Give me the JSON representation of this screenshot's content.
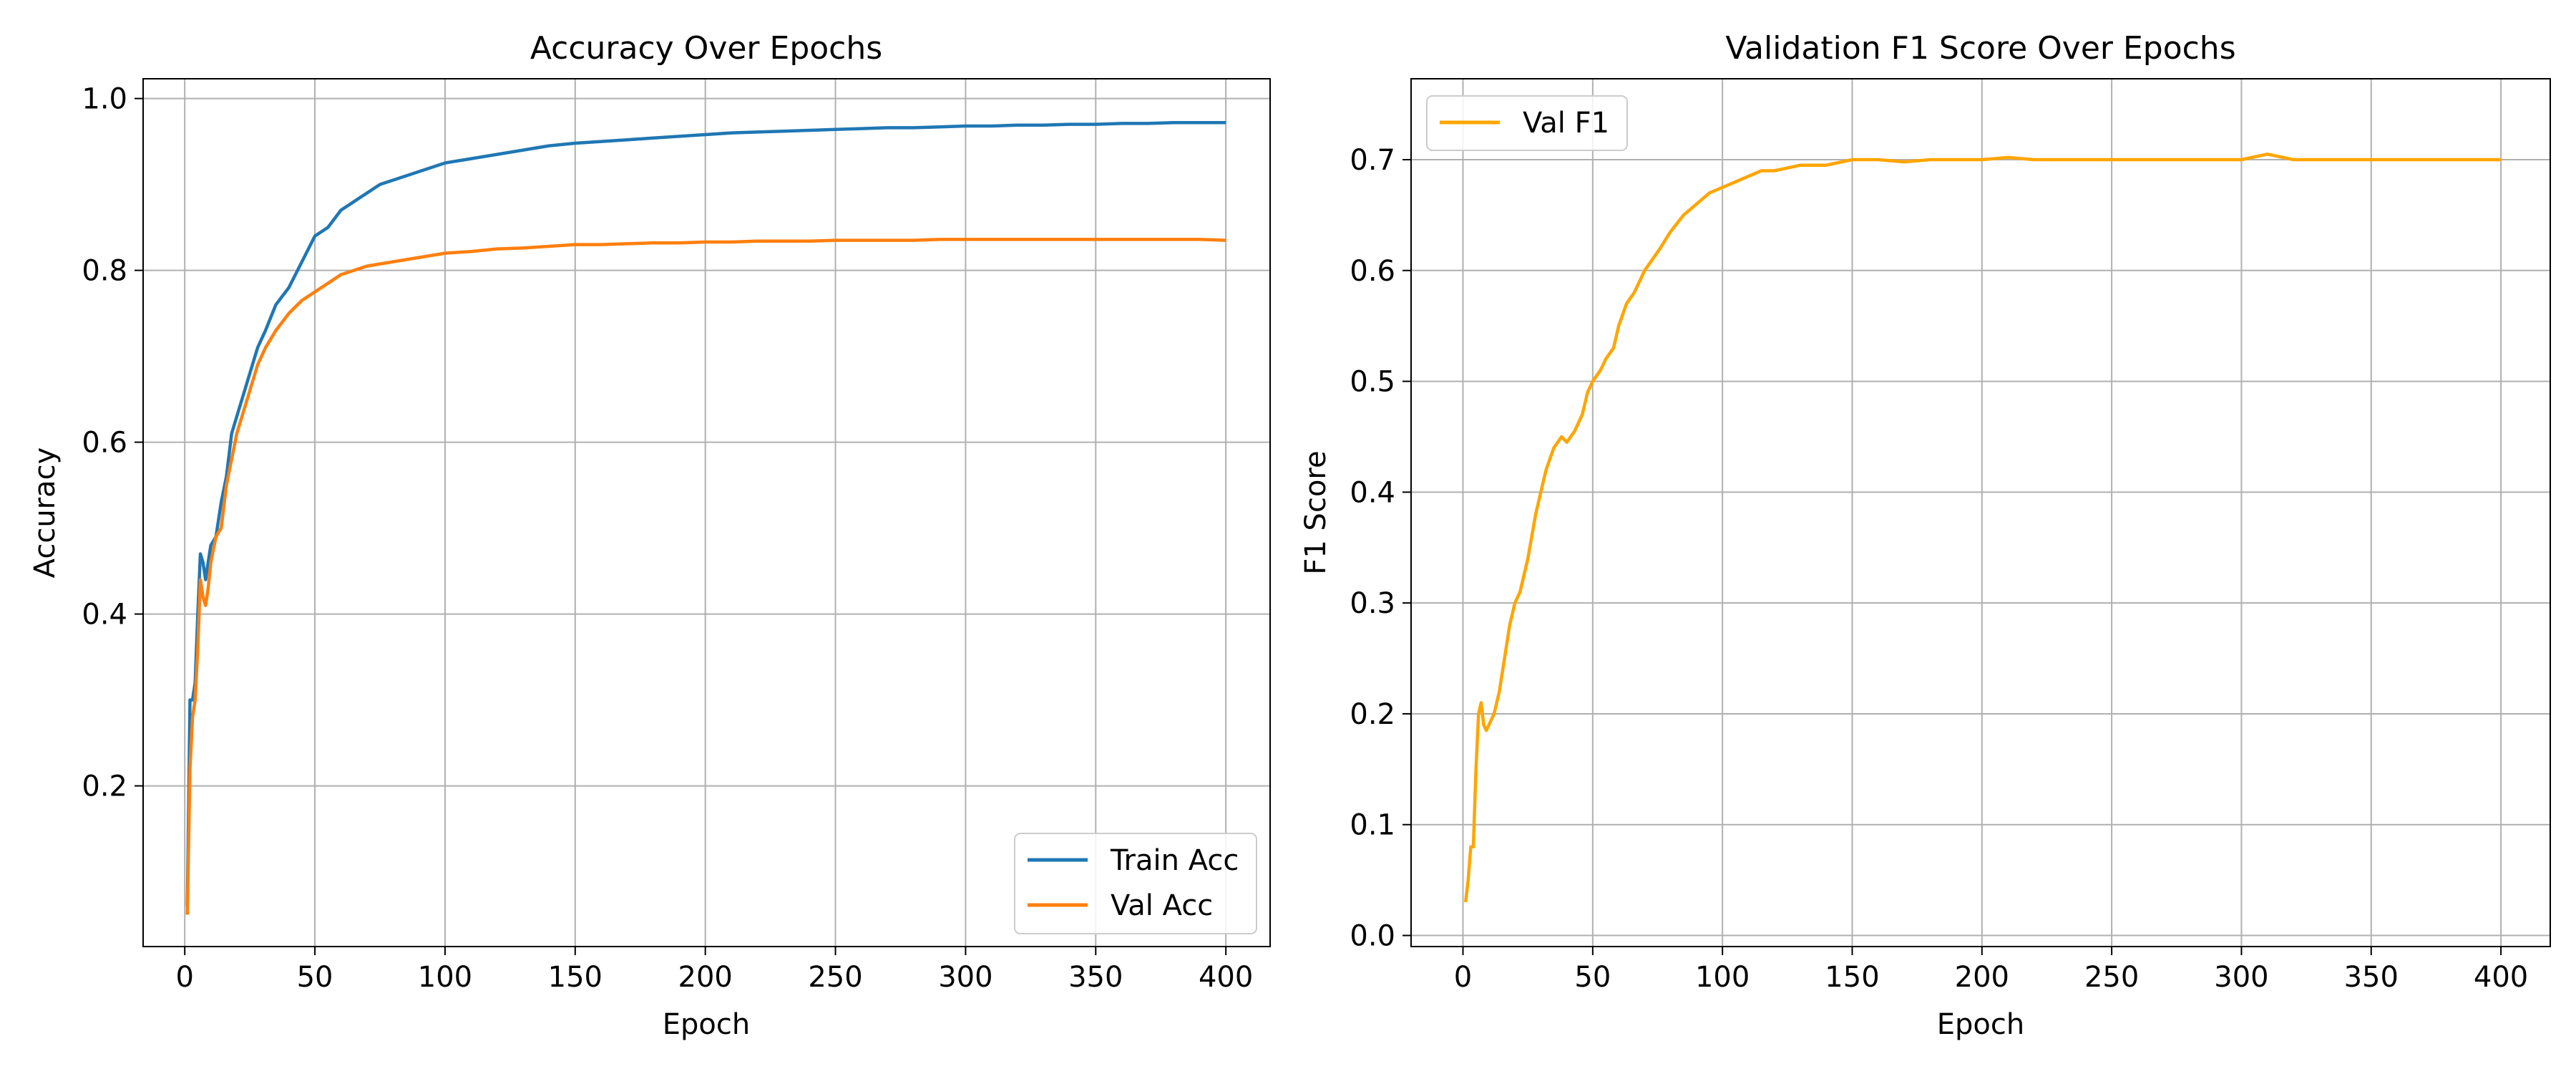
{
  "chart_data": [
    {
      "type": "line",
      "title": "Accuracy Over Epochs",
      "xlabel": "Epoch",
      "ylabel": "Accuracy",
      "xlim": [
        -16,
        417
      ],
      "ylim": [
        0.013,
        1.023
      ],
      "xticks": [
        0,
        50,
        100,
        150,
        200,
        250,
        300,
        350,
        400
      ],
      "yticks": [
        0.2,
        0.4,
        0.6,
        0.8,
        1.0
      ],
      "ytick_labels": [
        "0.2",
        "0.4",
        "0.6",
        "0.8",
        "1.0"
      ],
      "grid": true,
      "legend_position": "lower-right",
      "series": [
        {
          "name": "Train Acc",
          "color": "#1f77b4",
          "points": [
            [
              1,
              0.06
            ],
            [
              2,
              0.3
            ],
            [
              3,
              0.3
            ],
            [
              4,
              0.32
            ],
            [
              5,
              0.4
            ],
            [
              6,
              0.47
            ],
            [
              7,
              0.46
            ],
            [
              8,
              0.44
            ],
            [
              9,
              0.46
            ],
            [
              10,
              0.48
            ],
            [
              12,
              0.49
            ],
            [
              14,
              0.53
            ],
            [
              16,
              0.56
            ],
            [
              18,
              0.61
            ],
            [
              20,
              0.63
            ],
            [
              22,
              0.65
            ],
            [
              25,
              0.68
            ],
            [
              28,
              0.71
            ],
            [
              31,
              0.73
            ],
            [
              35,
              0.76
            ],
            [
              40,
              0.78
            ],
            [
              45,
              0.81
            ],
            [
              50,
              0.84
            ],
            [
              55,
              0.85
            ],
            [
              60,
              0.87
            ],
            [
              65,
              0.88
            ],
            [
              70,
              0.89
            ],
            [
              75,
              0.9
            ],
            [
              80,
              0.905
            ],
            [
              90,
              0.915
            ],
            [
              100,
              0.925
            ],
            [
              110,
              0.93
            ],
            [
              120,
              0.935
            ],
            [
              130,
              0.94
            ],
            [
              140,
              0.945
            ],
            [
              150,
              0.948
            ],
            [
              160,
              0.95
            ],
            [
              170,
              0.952
            ],
            [
              180,
              0.954
            ],
            [
              190,
              0.956
            ],
            [
              200,
              0.958
            ],
            [
              210,
              0.96
            ],
            [
              220,
              0.961
            ],
            [
              230,
              0.962
            ],
            [
              240,
              0.963
            ],
            [
              250,
              0.964
            ],
            [
              260,
              0.965
            ],
            [
              270,
              0.966
            ],
            [
              280,
              0.966
            ],
            [
              290,
              0.967
            ],
            [
              300,
              0.968
            ],
            [
              310,
              0.968
            ],
            [
              320,
              0.969
            ],
            [
              330,
              0.969
            ],
            [
              340,
              0.97
            ],
            [
              350,
              0.97
            ],
            [
              360,
              0.971
            ],
            [
              370,
              0.971
            ],
            [
              380,
              0.972
            ],
            [
              390,
              0.972
            ],
            [
              400,
              0.972
            ]
          ]
        },
        {
          "name": "Val Acc",
          "color": "#ff7f0e",
          "points": [
            [
              1,
              0.05
            ],
            [
              2,
              0.22
            ],
            [
              3,
              0.28
            ],
            [
              4,
              0.3
            ],
            [
              5,
              0.36
            ],
            [
              6,
              0.44
            ],
            [
              7,
              0.42
            ],
            [
              8,
              0.41
            ],
            [
              9,
              0.43
            ],
            [
              10,
              0.46
            ],
            [
              12,
              0.49
            ],
            [
              14,
              0.5
            ],
            [
              16,
              0.55
            ],
            [
              18,
              0.58
            ],
            [
              20,
              0.61
            ],
            [
              22,
              0.63
            ],
            [
              25,
              0.66
            ],
            [
              28,
              0.69
            ],
            [
              31,
              0.71
            ],
            [
              35,
              0.73
            ],
            [
              40,
              0.75
            ],
            [
              45,
              0.765
            ],
            [
              50,
              0.775
            ],
            [
              55,
              0.785
            ],
            [
              60,
              0.795
            ],
            [
              65,
              0.8
            ],
            [
              70,
              0.805
            ],
            [
              80,
              0.81
            ],
            [
              90,
              0.815
            ],
            [
              100,
              0.82
            ],
            [
              110,
              0.822
            ],
            [
              120,
              0.825
            ],
            [
              130,
              0.826
            ],
            [
              140,
              0.828
            ],
            [
              150,
              0.83
            ],
            [
              160,
              0.83
            ],
            [
              170,
              0.831
            ],
            [
              180,
              0.832
            ],
            [
              190,
              0.832
            ],
            [
              200,
              0.833
            ],
            [
              210,
              0.833
            ],
            [
              220,
              0.834
            ],
            [
              230,
              0.834
            ],
            [
              240,
              0.834
            ],
            [
              250,
              0.835
            ],
            [
              260,
              0.835
            ],
            [
              270,
              0.835
            ],
            [
              280,
              0.835
            ],
            [
              290,
              0.836
            ],
            [
              300,
              0.836
            ],
            [
              310,
              0.836
            ],
            [
              320,
              0.836
            ],
            [
              330,
              0.836
            ],
            [
              340,
              0.836
            ],
            [
              350,
              0.836
            ],
            [
              360,
              0.836
            ],
            [
              370,
              0.836
            ],
            [
              380,
              0.836
            ],
            [
              390,
              0.836
            ],
            [
              400,
              0.835
            ]
          ]
        }
      ]
    },
    {
      "type": "line",
      "title": "Validation F1 Score Over Epochs",
      "xlabel": "Epoch",
      "ylabel": "F1 Score",
      "xlim": [
        -20,
        419
      ],
      "ylim": [
        -0.01,
        0.773
      ],
      "xticks": [
        0,
        50,
        100,
        150,
        200,
        250,
        300,
        350,
        400
      ],
      "yticks": [
        0.0,
        0.1,
        0.2,
        0.3,
        0.4,
        0.5,
        0.6,
        0.7
      ],
      "ytick_labels": [
        "0.0",
        "0.1",
        "0.2",
        "0.3",
        "0.4",
        "0.5",
        "0.6",
        "0.7"
      ],
      "grid": true,
      "legend_position": "upper-left",
      "series": [
        {
          "name": "Val F1",
          "color": "#ffa500",
          "points": [
            [
              1,
              0.03
            ],
            [
              2,
              0.05
            ],
            [
              3,
              0.08
            ],
            [
              4,
              0.08
            ],
            [
              5,
              0.15
            ],
            [
              6,
              0.2
            ],
            [
              7,
              0.21
            ],
            [
              8,
              0.19
            ],
            [
              9,
              0.185
            ],
            [
              10,
              0.19
            ],
            [
              12,
              0.2
            ],
            [
              14,
              0.22
            ],
            [
              16,
              0.25
            ],
            [
              18,
              0.28
            ],
            [
              20,
              0.3
            ],
            [
              22,
              0.31
            ],
            [
              25,
              0.34
            ],
            [
              28,
              0.38
            ],
            [
              30,
              0.4
            ],
            [
              32,
              0.42
            ],
            [
              35,
              0.44
            ],
            [
              38,
              0.45
            ],
            [
              40,
              0.445
            ],
            [
              43,
              0.455
            ],
            [
              46,
              0.47
            ],
            [
              48,
              0.49
            ],
            [
              50,
              0.5
            ],
            [
              53,
              0.51
            ],
            [
              55,
              0.52
            ],
            [
              58,
              0.53
            ],
            [
              60,
              0.55
            ],
            [
              63,
              0.57
            ],
            [
              66,
              0.58
            ],
            [
              70,
              0.6
            ],
            [
              73,
              0.61
            ],
            [
              76,
              0.62
            ],
            [
              80,
              0.635
            ],
            [
              85,
              0.65
            ],
            [
              90,
              0.66
            ],
            [
              95,
              0.67
            ],
            [
              100,
              0.675
            ],
            [
              105,
              0.68
            ],
            [
              110,
              0.685
            ],
            [
              115,
              0.69
            ],
            [
              120,
              0.69
            ],
            [
              130,
              0.695
            ],
            [
              140,
              0.695
            ],
            [
              150,
              0.7
            ],
            [
              160,
              0.7
            ],
            [
              170,
              0.698
            ],
            [
              180,
              0.7
            ],
            [
              190,
              0.7
            ],
            [
              200,
              0.7
            ],
            [
              210,
              0.702
            ],
            [
              220,
              0.7
            ],
            [
              230,
              0.7
            ],
            [
              240,
              0.7
            ],
            [
              250,
              0.7
            ],
            [
              260,
              0.7
            ],
            [
              270,
              0.7
            ],
            [
              280,
              0.7
            ],
            [
              290,
              0.7
            ],
            [
              300,
              0.7
            ],
            [
              310,
              0.705
            ],
            [
              320,
              0.7
            ],
            [
              330,
              0.7
            ],
            [
              340,
              0.7
            ],
            [
              350,
              0.7
            ],
            [
              360,
              0.7
            ],
            [
              370,
              0.7
            ],
            [
              380,
              0.7
            ],
            [
              390,
              0.7
            ],
            [
              400,
              0.7
            ]
          ]
        }
      ]
    }
  ]
}
